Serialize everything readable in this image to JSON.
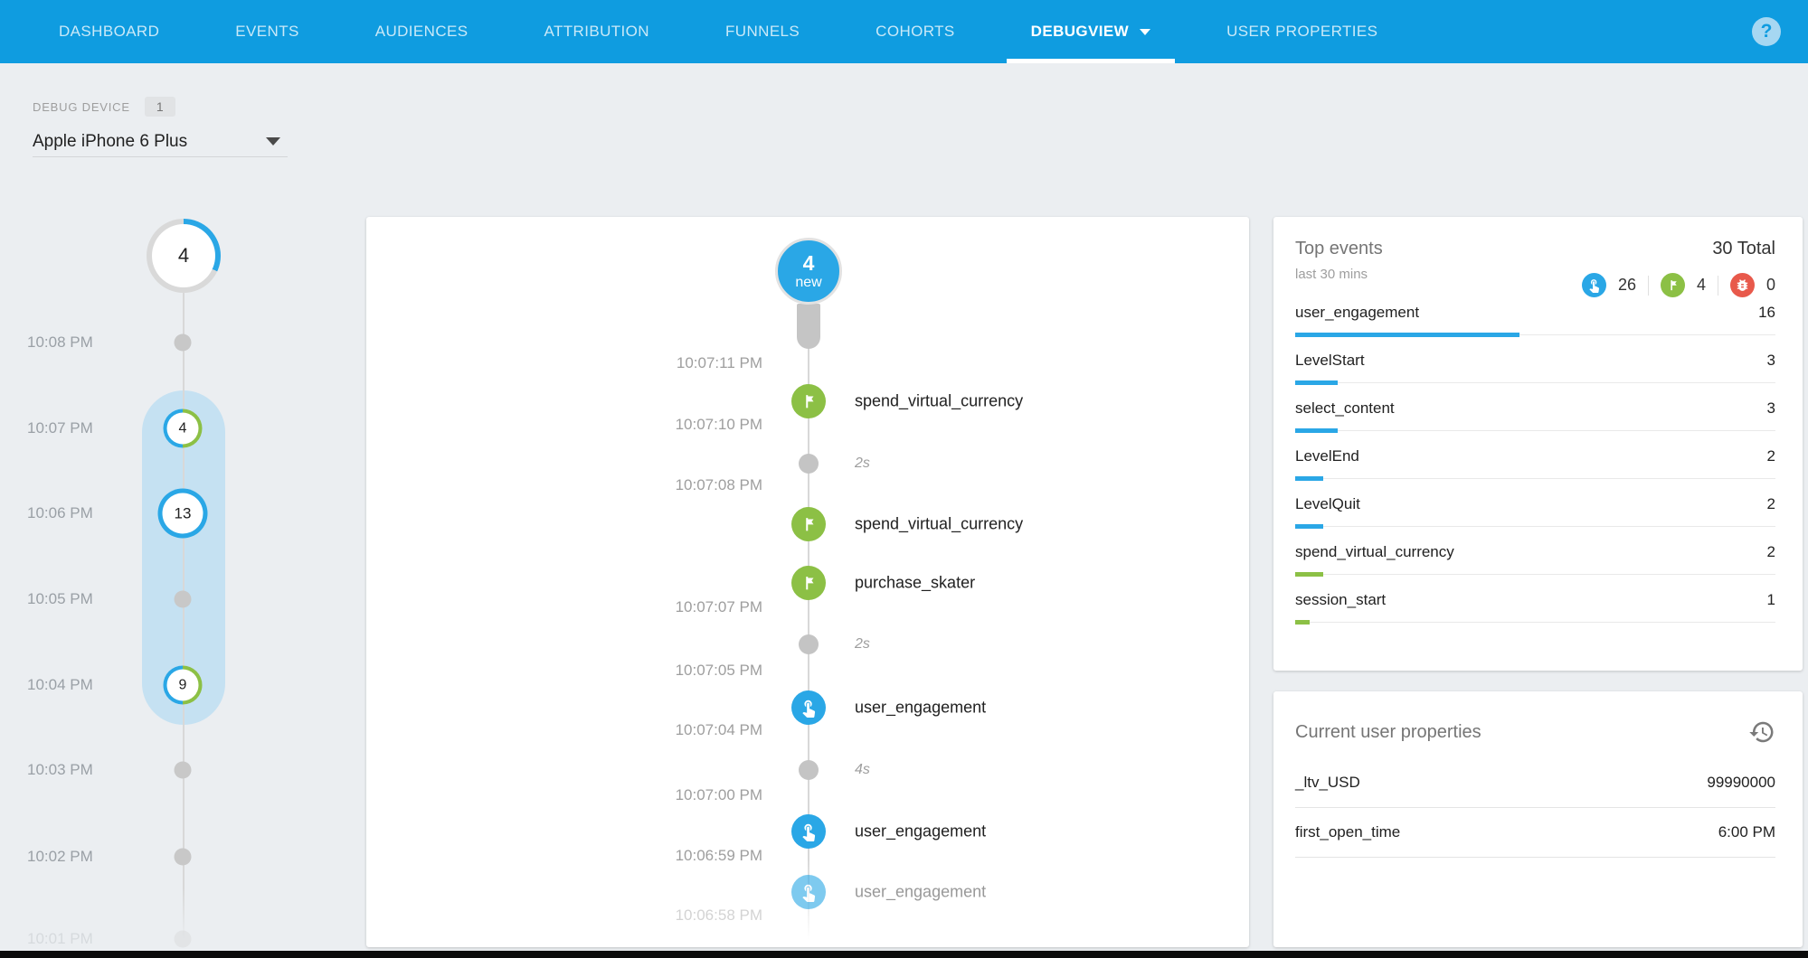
{
  "colors": {
    "header_blue": "#0f9ce0",
    "accent_blue": "#2aa7e6",
    "accent_green": "#8cc045",
    "accent_red": "#e8594b",
    "highlight_pill": "#c5e1f2"
  },
  "nav": {
    "items": [
      {
        "label": "DASHBOARD"
      },
      {
        "label": "EVENTS"
      },
      {
        "label": "AUDIENCES"
      },
      {
        "label": "ATTRIBUTION"
      },
      {
        "label": "FUNNELS"
      },
      {
        "label": "COHORTS"
      },
      {
        "label": "DEBUGVIEW"
      },
      {
        "label": "USER PROPERTIES"
      }
    ],
    "help_label": "?"
  },
  "device_panel": {
    "label": "DEBUG DEVICE",
    "count_badge": "1",
    "selected_device": "Apple iPhone 6 Plus"
  },
  "left_timeline": {
    "summary_count": "4",
    "ticks": [
      {
        "time": "10:08 PM",
        "type": "dot"
      },
      {
        "time": "10:07 PM",
        "type": "count",
        "count": "4"
      },
      {
        "time": "10:06 PM",
        "type": "count",
        "count": "13"
      },
      {
        "time": "10:05 PM",
        "type": "dot"
      },
      {
        "time": "10:04 PM",
        "type": "count",
        "count": "9"
      },
      {
        "time": "10:03 PM",
        "type": "dot"
      },
      {
        "time": "10:02 PM",
        "type": "dot"
      },
      {
        "time": "10:01 PM",
        "type": "dot"
      }
    ]
  },
  "center": {
    "new_badge": {
      "count": "4",
      "label": "new"
    },
    "timestamps": [
      "10:07:11 PM",
      "10:07:10 PM",
      "10:07:08 PM",
      "10:07:07 PM",
      "10:07:05 PM",
      "10:07:04 PM",
      "10:07:00 PM",
      "10:06:59 PM",
      "10:06:58 PM"
    ],
    "events": [
      {
        "name": "spend_virtual_currency",
        "icon": "flag"
      },
      {
        "name": "spend_virtual_currency",
        "icon": "flag"
      },
      {
        "name": "purchase_skater",
        "icon": "flag"
      },
      {
        "name": "user_engagement",
        "icon": "touch"
      },
      {
        "name": "user_engagement",
        "icon": "touch"
      },
      {
        "name": "user_engagement",
        "icon": "touch"
      }
    ],
    "gaps": [
      {
        "duration": "2s"
      },
      {
        "duration": "2s"
      },
      {
        "duration": "4s"
      }
    ]
  },
  "top_events": {
    "title": "Top events",
    "subtitle": "last 30 mins",
    "total": "30 Total",
    "counters": [
      {
        "icon": "touch-icon",
        "count": "26",
        "color": "#2aa7e6"
      },
      {
        "icon": "flag-icon",
        "count": "4",
        "color": "#8cc045"
      },
      {
        "icon": "bug-icon",
        "count": "0",
        "color": "#e8594b"
      }
    ],
    "rows": [
      {
        "name": "user_engagement",
        "count": 16,
        "bar_color": "#2aa7e6"
      },
      {
        "name": "LevelStart",
        "count": 3,
        "bar_color": "#2aa7e6"
      },
      {
        "name": "select_content",
        "count": 3,
        "bar_color": "#2aa7e6"
      },
      {
        "name": "LevelEnd",
        "count": 2,
        "bar_color": "#2aa7e6"
      },
      {
        "name": "LevelQuit",
        "count": 2,
        "bar_color": "#2aa7e6"
      },
      {
        "name": "spend_virtual_currency",
        "count": 2,
        "bar_color": "#8cc045"
      },
      {
        "name": "session_start",
        "count": 1,
        "bar_color": "#8cc045"
      }
    ]
  },
  "user_properties": {
    "title": "Current user properties",
    "rows": [
      {
        "name": "_ltv_USD",
        "value": "99990000"
      },
      {
        "name": "first_open_time",
        "value": "6:00 PM"
      }
    ]
  }
}
